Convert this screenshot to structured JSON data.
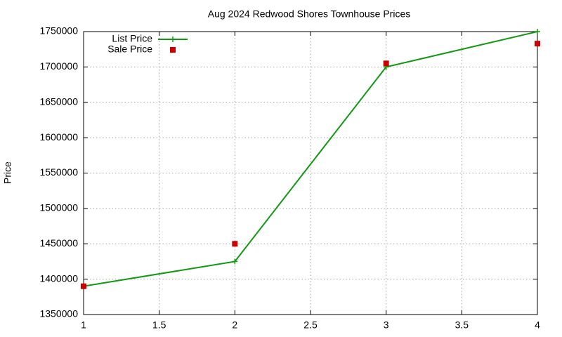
{
  "chart_data": {
    "type": "line",
    "title": "Aug 2024 Redwood Shores Townhouse Prices",
    "y_label": "Price",
    "x": [
      1,
      2,
      3,
      4
    ],
    "series": [
      {
        "name": "List Price",
        "color": "#119911",
        "mode": "lines+points",
        "values": [
          1390000,
          1425000,
          1700000,
          1750000
        ]
      },
      {
        "name": "Sale Price",
        "color": "#cc0000",
        "mode": "points",
        "values": [
          1390000,
          1450000,
          1705000,
          1733000
        ]
      }
    ],
    "xlim": [
      1,
      4
    ],
    "xticks": [
      1,
      1.5,
      2,
      2.5,
      3,
      3.5,
      4
    ],
    "ylim": [
      1350000,
      1750000
    ],
    "yticks": [
      1350000,
      1400000,
      1450000,
      1500000,
      1550000,
      1600000,
      1650000,
      1700000,
      1750000
    ],
    "grid": true,
    "legend": "top-left"
  }
}
